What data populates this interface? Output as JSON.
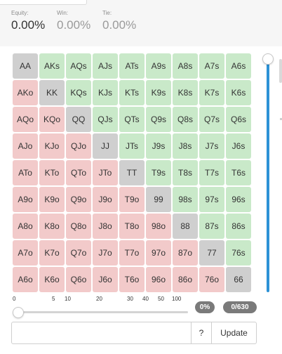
{
  "stats": {
    "equity": {
      "label": "Equity:",
      "value": "0.00%"
    },
    "win": {
      "label": "Win:",
      "value": "0.00%"
    },
    "tie": {
      "label": "Tie:",
      "value": "0.00%"
    }
  },
  "grid": {
    "rows": [
      [
        {
          "t": "AA",
          "k": "pair"
        },
        {
          "t": "AKs",
          "k": "suited"
        },
        {
          "t": "AQs",
          "k": "suited"
        },
        {
          "t": "AJs",
          "k": "suited"
        },
        {
          "t": "ATs",
          "k": "suited"
        },
        {
          "t": "A9s",
          "k": "suited"
        },
        {
          "t": "A8s",
          "k": "suited"
        },
        {
          "t": "A7s",
          "k": "suited"
        },
        {
          "t": "A6s",
          "k": "suited"
        }
      ],
      [
        {
          "t": "AKo",
          "k": "offsuit"
        },
        {
          "t": "KK",
          "k": "pair"
        },
        {
          "t": "KQs",
          "k": "suited"
        },
        {
          "t": "KJs",
          "k": "suited"
        },
        {
          "t": "KTs",
          "k": "suited"
        },
        {
          "t": "K9s",
          "k": "suited"
        },
        {
          "t": "K8s",
          "k": "suited"
        },
        {
          "t": "K7s",
          "k": "suited"
        },
        {
          "t": "K6s",
          "k": "suited"
        }
      ],
      [
        {
          "t": "AQo",
          "k": "offsuit"
        },
        {
          "t": "KQo",
          "k": "offsuit"
        },
        {
          "t": "QQ",
          "k": "pair"
        },
        {
          "t": "QJs",
          "k": "suited"
        },
        {
          "t": "QTs",
          "k": "suited"
        },
        {
          "t": "Q9s",
          "k": "suited"
        },
        {
          "t": "Q8s",
          "k": "suited"
        },
        {
          "t": "Q7s",
          "k": "suited"
        },
        {
          "t": "Q6s",
          "k": "suited"
        }
      ],
      [
        {
          "t": "AJo",
          "k": "offsuit"
        },
        {
          "t": "KJo",
          "k": "offsuit"
        },
        {
          "t": "QJo",
          "k": "offsuit"
        },
        {
          "t": "JJ",
          "k": "pair"
        },
        {
          "t": "JTs",
          "k": "suited"
        },
        {
          "t": "J9s",
          "k": "suited"
        },
        {
          "t": "J8s",
          "k": "suited"
        },
        {
          "t": "J7s",
          "k": "suited"
        },
        {
          "t": "J6s",
          "k": "suited"
        }
      ],
      [
        {
          "t": "ATo",
          "k": "offsuit"
        },
        {
          "t": "KTo",
          "k": "offsuit"
        },
        {
          "t": "QTo",
          "k": "offsuit"
        },
        {
          "t": "JTo",
          "k": "offsuit"
        },
        {
          "t": "TT",
          "k": "pair"
        },
        {
          "t": "T9s",
          "k": "suited"
        },
        {
          "t": "T8s",
          "k": "suited"
        },
        {
          "t": "T7s",
          "k": "suited"
        },
        {
          "t": "T6s",
          "k": "suited"
        }
      ],
      [
        {
          "t": "A9o",
          "k": "offsuit"
        },
        {
          "t": "K9o",
          "k": "offsuit"
        },
        {
          "t": "Q9o",
          "k": "offsuit"
        },
        {
          "t": "J9o",
          "k": "offsuit"
        },
        {
          "t": "T9o",
          "k": "offsuit"
        },
        {
          "t": "99",
          "k": "pair"
        },
        {
          "t": "98s",
          "k": "suited"
        },
        {
          "t": "97s",
          "k": "suited"
        },
        {
          "t": "96s",
          "k": "suited"
        }
      ],
      [
        {
          "t": "A8o",
          "k": "offsuit"
        },
        {
          "t": "K8o",
          "k": "offsuit"
        },
        {
          "t": "Q8o",
          "k": "offsuit"
        },
        {
          "t": "J8o",
          "k": "offsuit"
        },
        {
          "t": "T8o",
          "k": "offsuit"
        },
        {
          "t": "98o",
          "k": "offsuit"
        },
        {
          "t": "88",
          "k": "pair"
        },
        {
          "t": "87s",
          "k": "suited"
        },
        {
          "t": "86s",
          "k": "suited"
        }
      ],
      [
        {
          "t": "A7o",
          "k": "offsuit"
        },
        {
          "t": "K7o",
          "k": "offsuit"
        },
        {
          "t": "Q7o",
          "k": "offsuit"
        },
        {
          "t": "J7o",
          "k": "offsuit"
        },
        {
          "t": "T7o",
          "k": "offsuit"
        },
        {
          "t": "97o",
          "k": "offsuit"
        },
        {
          "t": "87o",
          "k": "offsuit"
        },
        {
          "t": "77",
          "k": "pair"
        },
        {
          "t": "76s",
          "k": "suited"
        }
      ],
      [
        {
          "t": "A6o",
          "k": "offsuit"
        },
        {
          "t": "K6o",
          "k": "offsuit"
        },
        {
          "t": "Q6o",
          "k": "offsuit"
        },
        {
          "t": "J6o",
          "k": "offsuit"
        },
        {
          "t": "T6o",
          "k": "offsuit"
        },
        {
          "t": "96o",
          "k": "offsuit"
        },
        {
          "t": "86o",
          "k": "offsuit"
        },
        {
          "t": "76o",
          "k": "offsuit"
        },
        {
          "t": "66",
          "k": "pair"
        }
      ]
    ]
  },
  "range_slider": {
    "ticks": [
      "0",
      "5",
      "10",
      "20",
      "30",
      "40",
      "50",
      "100"
    ],
    "value": 0
  },
  "vertical_slider": {
    "value": 100
  },
  "badges": {
    "percent": "0%",
    "count": "0/630"
  },
  "hand_input": {
    "value": "",
    "placeholder": ""
  },
  "buttons": {
    "help": "?",
    "update": "Update"
  },
  "colors": {
    "suited": "#c9e9c9",
    "offsuit": "#f2caca",
    "pair": "#cfcfcf",
    "accent": "#2d92d6"
  }
}
